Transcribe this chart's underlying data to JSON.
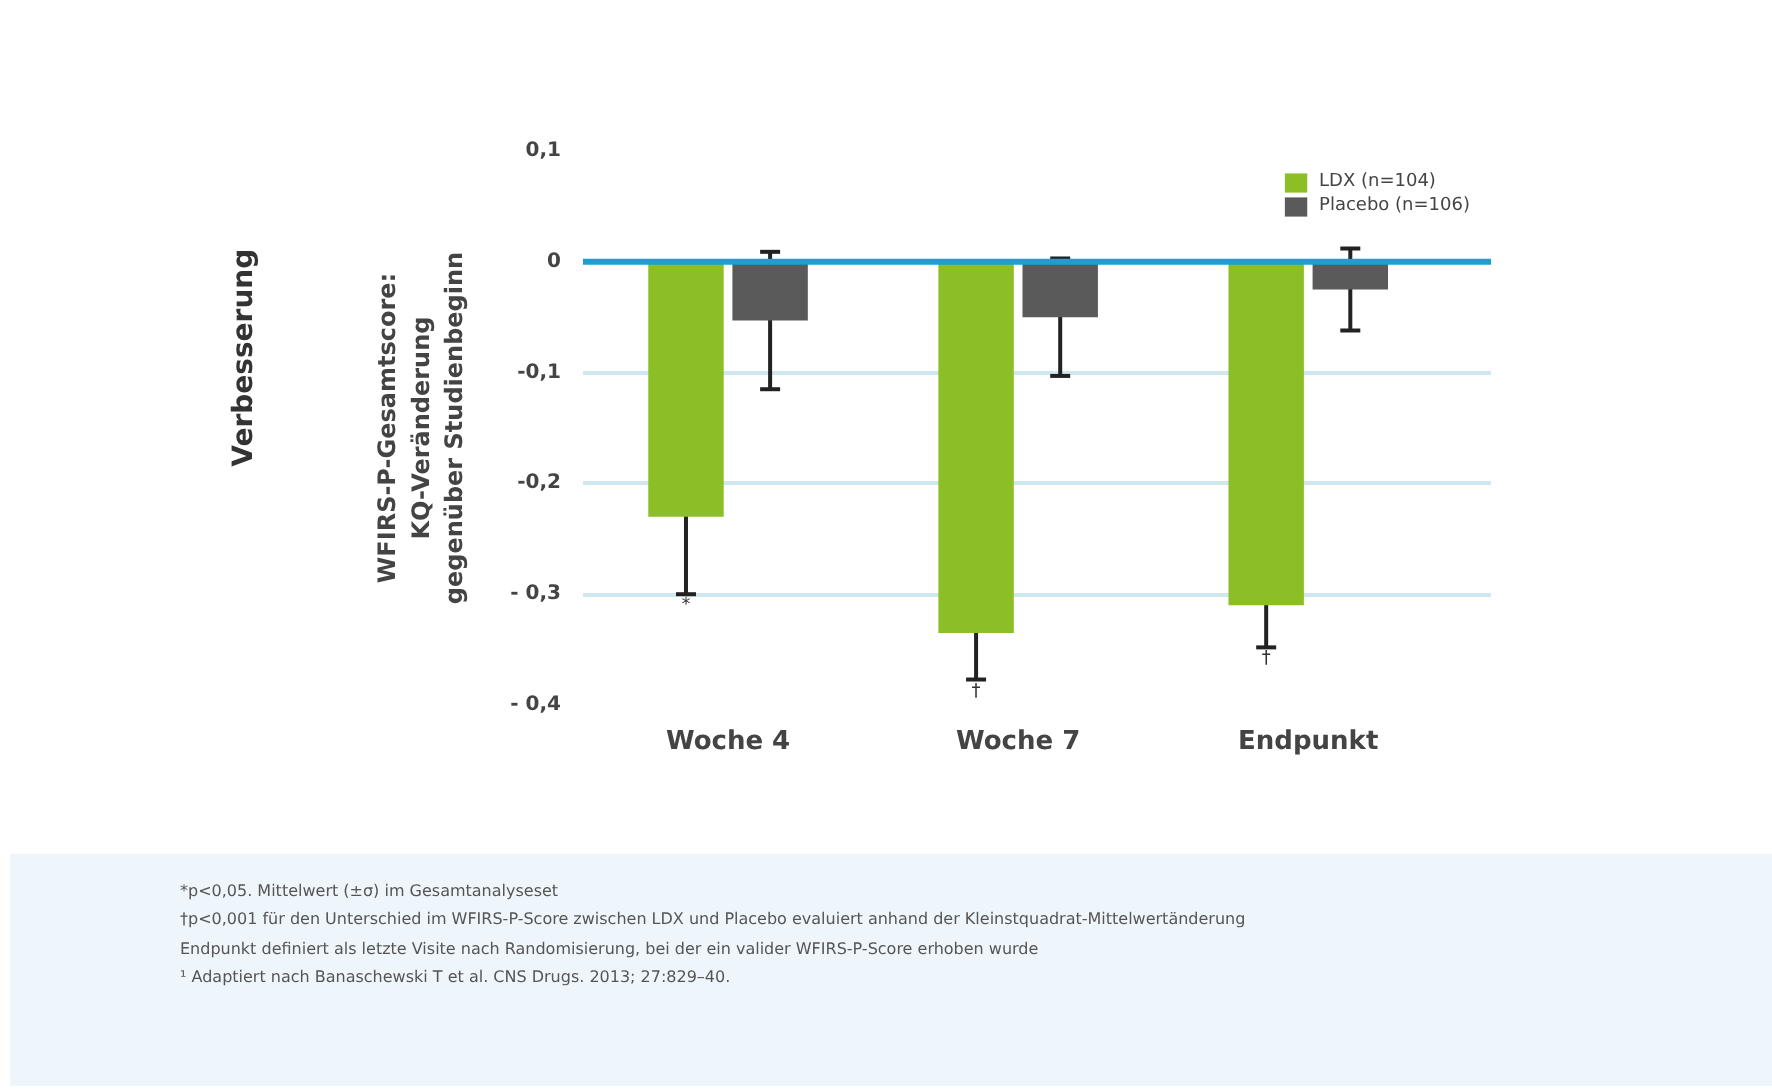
{
  "chart_data": {
    "type": "bar",
    "categories": [
      "Woche 4",
      "Woche 7",
      "Endpunkt"
    ],
    "ylabel": "WFIRS-P-Gesamtscore:\nKQ-Veränderung\ngegenüber Studienbeginn",
    "series": [
      {
        "name": "LDX (n=104)",
        "color": "#8cbf26",
        "values": [
          -0.23,
          -0.335,
          -0.31
        ],
        "errors": [
          0.07,
          0.042,
          0.038
        ]
      },
      {
        "name": "Placebo (n=106)",
        "color": "#5a5a5a",
        "values": [
          -0.053,
          -0.05,
          -0.025
        ],
        "errors": [
          0.062,
          0.053,
          0.037
        ]
      }
    ],
    "ylim": [
      -0.4,
      0.1
    ],
    "yticks": [
      {
        "value": 0.1,
        "label": "0,1"
      },
      0,
      {
        "value": -0.1,
        "label": "-0,1"
      },
      {
        "value": -0.2,
        "label": "-0,2"
      },
      {
        "value": -0.3,
        "label": "- 0,3"
      },
      {
        "value": -0.4,
        "label": "- 0,4"
      }
    ],
    "grid": "y",
    "legend": "top right",
    "ref_lines": [
      {
        "axis": "y",
        "value": 0,
        "color": "#1a9fd0"
      }
    ],
    "annotations": [
      "Verbesserung",
      "*",
      "†",
      "†",
      "*p<0,05. Mittelwert (±σ) im Gesamtanalyseset",
      "†p<0,001 für den Unterschied im WFIRS-P-Score zwischen LDX und Placebo evaluiert anhand der Kleinstquadrat-Mittelwertänderung",
      "Endpunkt definiert als letzte Visite nach Randomisierung, bei der ein valider WFIRS-P-Score erhoben wurde",
      "¹ Adaptiert nach Banaschewski T et al. CNS Drugs. 2013; 27:829–40."
    ]
  }
}
